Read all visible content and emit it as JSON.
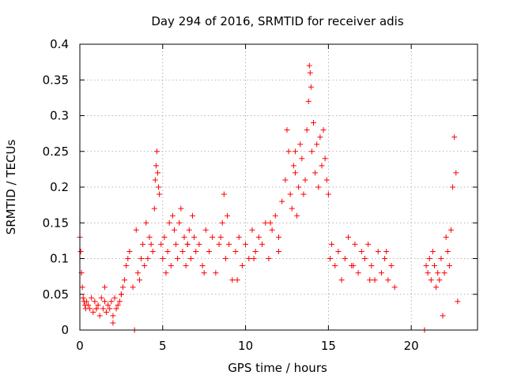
{
  "chart_data": {
    "type": "scatter",
    "title": "Day 294 of 2016, SRMTID for receiver adis",
    "xlabel": "GPS time / hours",
    "ylabel": "SRMTID / TECUs",
    "xlim": [
      0,
      24
    ],
    "ylim": [
      0,
      0.4
    ],
    "x_ticks": [
      0,
      5,
      10,
      15,
      20
    ],
    "x_tick_labels": [
      "0",
      "5",
      "10",
      "15",
      "20"
    ],
    "y_ticks": [
      0,
      0.05,
      0.1,
      0.15,
      0.2,
      0.25,
      0.3,
      0.35,
      0.4
    ],
    "y_tick_labels": [
      "0",
      "0.05",
      "0.1",
      "0.15",
      "0.2",
      "0.25",
      "0.3",
      "0.35",
      "0.4"
    ],
    "grid": true,
    "marker": "plus",
    "color": "#ff0000",
    "series": [
      {
        "name": "SRMTID",
        "x": [
          0.0,
          0.05,
          0.1,
          0.15,
          0.2,
          0.25,
          0.3,
          0.35,
          0.4,
          0.5,
          0.6,
          0.7,
          0.8,
          0.9,
          1.0,
          1.1,
          1.2,
          1.3,
          1.4,
          1.5,
          1.6,
          1.7,
          1.8,
          1.9,
          2.0,
          2.1,
          2.2,
          2.3,
          2.4,
          2.5,
          2.6,
          2.7,
          2.8,
          2.9,
          3.0,
          3.2,
          3.4,
          3.5,
          3.6,
          3.7,
          3.8,
          3.9,
          4.0,
          4.1,
          4.2,
          4.3,
          4.4,
          4.5,
          4.55,
          4.6,
          4.65,
          4.7,
          4.75,
          4.8,
          4.9,
          5.0,
          5.1,
          5.2,
          5.3,
          5.4,
          5.5,
          5.6,
          5.7,
          5.8,
          5.9,
          6.0,
          6.1,
          6.2,
          6.3,
          6.4,
          6.5,
          6.6,
          6.7,
          6.8,
          6.9,
          7.0,
          7.2,
          7.4,
          7.6,
          7.8,
          8.0,
          8.2,
          8.4,
          8.6,
          8.7,
          8.8,
          8.9,
          9.0,
          9.2,
          9.4,
          9.6,
          9.8,
          10.0,
          10.2,
          10.4,
          10.6,
          10.8,
          11.0,
          11.2,
          11.4,
          11.6,
          11.8,
          12.0,
          12.2,
          12.4,
          12.5,
          12.6,
          12.7,
          12.8,
          12.9,
          13.0,
          13.1,
          13.2,
          13.3,
          13.4,
          13.5,
          13.6,
          13.7,
          13.8,
          13.85,
          13.9,
          13.95,
          14.0,
          14.1,
          14.2,
          14.3,
          14.4,
          14.5,
          14.6,
          14.7,
          14.8,
          14.9,
          15.0,
          15.1,
          15.2,
          15.4,
          15.6,
          15.8,
          16.0,
          16.2,
          16.4,
          16.6,
          16.8,
          17.0,
          17.2,
          17.4,
          17.6,
          17.8,
          18.0,
          18.2,
          18.4,
          18.6,
          18.8,
          19.0,
          20.9,
          21.0,
          21.1,
          21.2,
          21.3,
          21.4,
          21.5,
          21.6,
          21.7,
          21.8,
          21.9,
          22.0,
          22.1,
          22.2,
          22.3,
          22.4,
          22.5,
          22.6,
          22.7,
          22.8,
          1.0,
          1.5,
          2.0,
          2.5,
          6.5,
          7.5,
          8.5,
          9.5,
          10.5,
          11.5,
          12.0,
          13.0,
          16.5,
          17.5,
          18.5,
          3.3,
          20.8
        ],
        "y": [
          0.13,
          0.11,
          0.08,
          0.06,
          0.045,
          0.04,
          0.035,
          0.03,
          0.04,
          0.035,
          0.03,
          0.045,
          0.025,
          0.04,
          0.03,
          0.035,
          0.02,
          0.045,
          0.03,
          0.04,
          0.025,
          0.035,
          0.03,
          0.04,
          0.02,
          0.045,
          0.03,
          0.035,
          0.04,
          0.05,
          0.06,
          0.07,
          0.09,
          0.1,
          0.11,
          0.06,
          0.14,
          0.08,
          0.07,
          0.1,
          0.12,
          0.09,
          0.15,
          0.1,
          0.13,
          0.12,
          0.11,
          0.17,
          0.21,
          0.23,
          0.25,
          0.22,
          0.2,
          0.19,
          0.12,
          0.1,
          0.13,
          0.08,
          0.11,
          0.15,
          0.09,
          0.16,
          0.14,
          0.12,
          0.1,
          0.15,
          0.17,
          0.11,
          0.13,
          0.09,
          0.12,
          0.14,
          0.1,
          0.16,
          0.13,
          0.11,
          0.12,
          0.09,
          0.14,
          0.11,
          0.13,
          0.08,
          0.12,
          0.15,
          0.19,
          0.1,
          0.16,
          0.12,
          0.07,
          0.11,
          0.13,
          0.09,
          0.12,
          0.1,
          0.14,
          0.11,
          0.13,
          0.12,
          0.15,
          0.1,
          0.14,
          0.16,
          0.13,
          0.18,
          0.21,
          0.28,
          0.25,
          0.19,
          0.17,
          0.23,
          0.22,
          0.16,
          0.2,
          0.26,
          0.24,
          0.19,
          0.21,
          0.28,
          0.32,
          0.37,
          0.36,
          0.34,
          0.25,
          0.29,
          0.22,
          0.26,
          0.2,
          0.27,
          0.23,
          0.28,
          0.24,
          0.21,
          0.19,
          0.1,
          0.12,
          0.09,
          0.11,
          0.07,
          0.1,
          0.13,
          0.09,
          0.12,
          0.08,
          0.11,
          0.1,
          0.12,
          0.09,
          0.07,
          0.11,
          0.08,
          0.1,
          0.07,
          0.09,
          0.06,
          0.09,
          0.08,
          0.1,
          0.07,
          0.11,
          0.09,
          0.06,
          0.08,
          0.07,
          0.1,
          0.02,
          0.08,
          0.13,
          0.11,
          0.09,
          0.14,
          0.2,
          0.27,
          0.22,
          0.04,
          0.03,
          0.06,
          0.01,
          0.05,
          0.12,
          0.08,
          0.13,
          0.07,
          0.1,
          0.15,
          0.11,
          0.25,
          0.09,
          0.07,
          0.11,
          0.0,
          0.0
        ]
      }
    ]
  }
}
